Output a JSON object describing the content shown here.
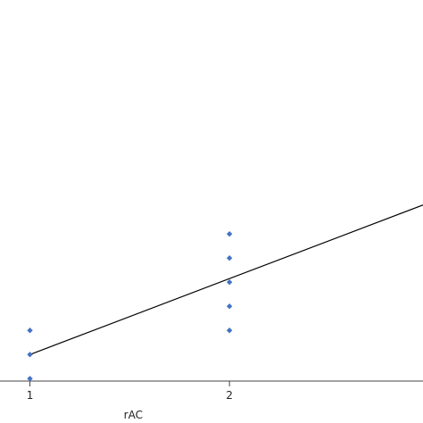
{
  "chart_data": {
    "type": "scatter",
    "title": "",
    "xlabel": "rAC",
    "ylabel": "",
    "xlim": [
      0.85,
      2.97
    ],
    "ylim": [
      -0.1,
      15.7
    ],
    "x_ticks": [
      1,
      2
    ],
    "x_tick_labels": [
      "1",
      "2"
    ],
    "grid": false,
    "legend": "none",
    "series": [
      {
        "kind": "points",
        "marker": "diamond",
        "color": "#4472C4",
        "points": [
          {
            "x": 1,
            "y": 0
          },
          {
            "x": 1,
            "y": 1
          },
          {
            "x": 1,
            "y": 2
          },
          {
            "x": 2,
            "y": 2
          },
          {
            "x": 2,
            "y": 3
          },
          {
            "x": 2,
            "y": 4
          },
          {
            "x": 2,
            "y": 5
          },
          {
            "x": 2,
            "y": 6
          }
        ]
      },
      {
        "kind": "fit-line",
        "color": "#000000",
        "line": [
          {
            "x": 1,
            "y": 1
          },
          {
            "x": 2.97,
            "y": 7.2
          }
        ]
      }
    ]
  }
}
